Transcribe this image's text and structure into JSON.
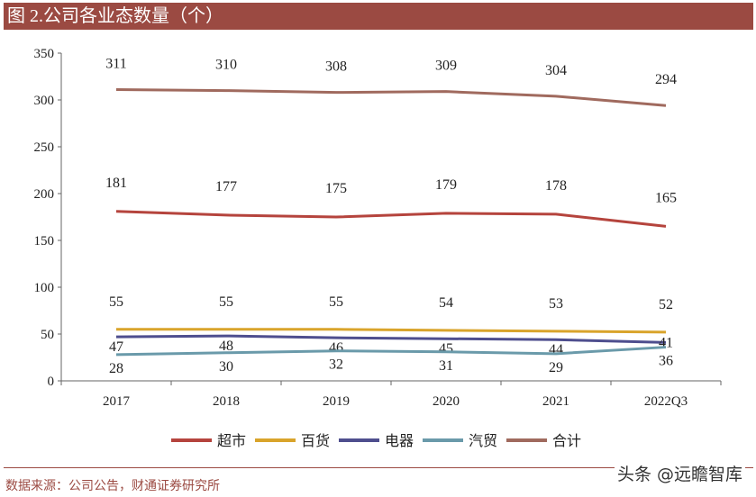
{
  "header": {
    "title": "图 2.公司各业态数量（个）"
  },
  "footer": {
    "source": "数据来源：公司公告，财通证券研究所",
    "watermark": "头条 @远瞻智库"
  },
  "chart_data": {
    "type": "line",
    "title": "图 2.公司各业态数量（个）",
    "categories": [
      "2017",
      "2018",
      "2019",
      "2020",
      "2021",
      "2022Q3"
    ],
    "ylim": [
      0,
      350
    ],
    "yticks": [
      0,
      50,
      100,
      150,
      200,
      250,
      300,
      350
    ],
    "grid": false,
    "legend": "bottom",
    "series": [
      {
        "name": "超市",
        "color": "#b5443d",
        "values": [
          181,
          177,
          175,
          179,
          178,
          165
        ]
      },
      {
        "name": "百货",
        "color": "#d9a42b",
        "values": [
          55,
          55,
          55,
          54,
          53,
          52
        ]
      },
      {
        "name": "电器",
        "color": "#4e4e8e",
        "values": [
          47,
          48,
          46,
          45,
          44,
          41
        ]
      },
      {
        "name": "汽贸",
        "color": "#6a9aaa",
        "values": [
          28,
          30,
          32,
          31,
          29,
          36
        ]
      },
      {
        "name": "合计",
        "color": "#a06a5e",
        "values": [
          311,
          310,
          308,
          309,
          304,
          294
        ]
      }
    ]
  }
}
